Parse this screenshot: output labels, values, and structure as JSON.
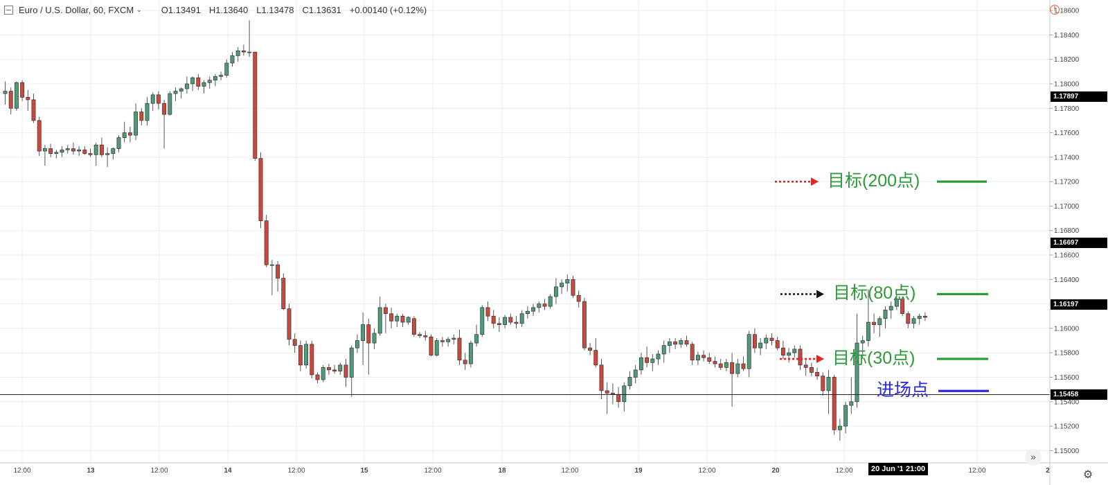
{
  "header": {
    "symbol": "Euro / U.S. Dollar, 60, FXCM",
    "caret": "⌄",
    "open": "O1.13491",
    "high": "H1.13640",
    "low": "L1.13478",
    "close": "C1.13631",
    "change": "+0.00140 (+0.12%)"
  },
  "icons": {
    "warning": "!",
    "scroll_right": "»",
    "settings": "⚙"
  },
  "colors": {
    "up": "#4f9a77",
    "down": "#c94a3c",
    "grid": "#ececec",
    "target_line": "#2e9a3a",
    "target_text": "#2e9a3a",
    "entry_line": "#2a2ae0",
    "entry_text": "#2a2ae0",
    "arrow_red": "#e8231f",
    "arrow_black": "#111111"
  },
  "price_axis": {
    "labels": [
      "1.18600",
      "1.18400",
      "1.18200",
      "1.18000",
      "1.17800",
      "1.17600",
      "1.17400",
      "1.17200",
      "1.17000",
      "1.16800",
      "1.16600",
      "1.16400",
      "1.16200",
      "1.16000",
      "1.15800",
      "1.15600",
      "1.15400",
      "1.15200",
      "1.15000"
    ],
    "tags": [
      "1.17897",
      "1.16697",
      "1.16197",
      "1.15458"
    ]
  },
  "time_axis": {
    "labels": [
      "12:00",
      "13",
      "12:00",
      "14",
      "12:00",
      "15",
      "12:00",
      "18",
      "12:00",
      "19",
      "12:00",
      "20",
      "12:00",
      "12:00",
      "2"
    ],
    "highlight_date": "20 Jun '18",
    "highlight_time": "21:00"
  },
  "annotations": {
    "target_200": "目标(200点)",
    "target_80": "目标(80点)",
    "target_30": "目标(30点)",
    "entry": "进场点"
  },
  "chart_data": {
    "type": "candlestick",
    "title": "Euro / U.S. Dollar, 60, FXCM",
    "timeframe": "60",
    "ylim": [
      1.149,
      1.1868
    ],
    "grid": true,
    "entry_price": 1.15458,
    "target_prices": {
      "target_200": 1.172,
      "target_80": 1.1628,
      "target_30": 1.1575
    },
    "candles": [
      [
        1.1792,
        1.1802,
        1.1783,
        1.1794
      ],
      [
        1.1794,
        1.1797,
        1.1775,
        1.178
      ],
      [
        1.178,
        1.1802,
        1.1778,
        1.1801
      ],
      [
        1.1801,
        1.1803,
        1.1786,
        1.1789
      ],
      [
        1.1789,
        1.1795,
        1.1778,
        1.1787
      ],
      [
        1.1787,
        1.1792,
        1.1768,
        1.177
      ],
      [
        1.177,
        1.1773,
        1.1741,
        1.1745
      ],
      [
        1.1745,
        1.175,
        1.1733,
        1.1747
      ],
      [
        1.1747,
        1.1751,
        1.174,
        1.1743
      ],
      [
        1.1743,
        1.1746,
        1.1739,
        1.1744
      ],
      [
        1.1744,
        1.1749,
        1.174,
        1.1746
      ],
      [
        1.1746,
        1.175,
        1.1743,
        1.1747
      ],
      [
        1.1747,
        1.1752,
        1.1742,
        1.1745
      ],
      [
        1.1745,
        1.1749,
        1.1741,
        1.1746
      ],
      [
        1.1746,
        1.1749,
        1.1742,
        1.1743
      ],
      [
        1.1743,
        1.1747,
        1.174,
        1.1742
      ],
      [
        1.1742,
        1.1752,
        1.1733,
        1.175
      ],
      [
        1.175,
        1.1756,
        1.174,
        1.1742
      ],
      [
        1.1742,
        1.1748,
        1.1732,
        1.1743
      ],
      [
        1.1743,
        1.1748,
        1.1738,
        1.1747
      ],
      [
        1.1747,
        1.1758,
        1.1744,
        1.1756
      ],
      [
        1.1756,
        1.1769,
        1.1752,
        1.176
      ],
      [
        1.176,
        1.1765,
        1.1752,
        1.1758
      ],
      [
        1.1758,
        1.1784,
        1.1754,
        1.1777
      ],
      [
        1.1777,
        1.178,
        1.1766,
        1.177
      ],
      [
        1.177,
        1.1789,
        1.1766,
        1.1784
      ],
      [
        1.1784,
        1.1793,
        1.1778,
        1.1791
      ],
      [
        1.1791,
        1.1794,
        1.1779,
        1.1784
      ],
      [
        1.1784,
        1.1787,
        1.1747,
        1.1775
      ],
      [
        1.1775,
        1.1794,
        1.1774,
        1.1792
      ],
      [
        1.1792,
        1.1797,
        1.1786,
        1.1794
      ],
      [
        1.1794,
        1.1797,
        1.1788,
        1.1796
      ],
      [
        1.1796,
        1.1806,
        1.1792,
        1.18
      ],
      [
        1.18,
        1.1806,
        1.1794,
        1.1805
      ],
      [
        1.1805,
        1.1808,
        1.1795,
        1.1798
      ],
      [
        1.1798,
        1.1803,
        1.1792,
        1.1801
      ],
      [
        1.1801,
        1.1806,
        1.1796,
        1.1803
      ],
      [
        1.1803,
        1.1808,
        1.1798,
        1.1806
      ],
      [
        1.1806,
        1.181,
        1.1803,
        1.1807
      ],
      [
        1.1807,
        1.182,
        1.1805,
        1.1817
      ],
      [
        1.1817,
        1.1826,
        1.1814,
        1.1823
      ],
      [
        1.1823,
        1.183,
        1.1818,
        1.1827
      ],
      [
        1.1827,
        1.1832,
        1.1823,
        1.1826
      ],
      [
        1.1826,
        1.1852,
        1.1822,
        1.1826
      ],
      [
        1.1826,
        1.1826,
        1.1737,
        1.1739
      ],
      [
        1.1739,
        1.1744,
        1.1682,
        1.1688
      ],
      [
        1.1688,
        1.1693,
        1.165,
        1.1652
      ],
      [
        1.1652,
        1.1656,
        1.1627,
        1.1652
      ],
      [
        1.1652,
        1.1655,
        1.163,
        1.1641
      ],
      [
        1.1641,
        1.1645,
        1.1615,
        1.1616
      ],
      [
        1.1616,
        1.162,
        1.1586,
        1.1591
      ],
      [
        1.1591,
        1.1596,
        1.158,
        1.1586
      ],
      [
        1.1586,
        1.159,
        1.1565,
        1.157
      ],
      [
        1.157,
        1.159,
        1.1567,
        1.1587
      ],
      [
        1.1587,
        1.159,
        1.1559,
        1.1562
      ],
      [
        1.1562,
        1.1564,
        1.1555,
        1.1558
      ],
      [
        1.1558,
        1.157,
        1.1556,
        1.1568
      ],
      [
        1.1568,
        1.1571,
        1.1562,
        1.1566
      ],
      [
        1.1566,
        1.157,
        1.1563,
        1.1565
      ],
      [
        1.1565,
        1.1572,
        1.1562,
        1.157
      ],
      [
        1.157,
        1.1575,
        1.1552,
        1.156
      ],
      [
        1.156,
        1.1586,
        1.1544,
        1.1584
      ],
      [
        1.1584,
        1.1595,
        1.158,
        1.159
      ],
      [
        1.159,
        1.1613,
        1.157,
        1.1603
      ],
      [
        1.1603,
        1.1608,
        1.1562,
        1.1588
      ],
      [
        1.1588,
        1.16,
        1.1583,
        1.1596
      ],
      [
        1.1596,
        1.1626,
        1.1594,
        1.1617
      ],
      [
        1.1617,
        1.162,
        1.1596,
        1.1612
      ],
      [
        1.1612,
        1.1617,
        1.16,
        1.1606
      ],
      [
        1.1606,
        1.1612,
        1.1601,
        1.161
      ],
      [
        1.161,
        1.1612,
        1.1601,
        1.1605
      ],
      [
        1.1605,
        1.161,
        1.1603,
        1.1609
      ],
      [
        1.1608,
        1.161,
        1.1593,
        1.1595
      ],
      [
        1.1595,
        1.1597,
        1.1592,
        1.1594
      ],
      [
        1.1594,
        1.1598,
        1.159,
        1.1593
      ],
      [
        1.1593,
        1.1595,
        1.1577,
        1.1578
      ],
      [
        1.1578,
        1.1592,
        1.1577,
        1.159
      ],
      [
        1.159,
        1.1593,
        1.1585,
        1.1589
      ],
      [
        1.1589,
        1.1593,
        1.1585,
        1.1591
      ],
      [
        1.1591,
        1.1595,
        1.1587,
        1.1592
      ],
      [
        1.1592,
        1.1599,
        1.157,
        1.1574
      ],
      [
        1.1574,
        1.158,
        1.1566,
        1.1571
      ],
      [
        1.1571,
        1.159,
        1.1568,
        1.1588
      ],
      [
        1.1588,
        1.1603,
        1.1585,
        1.1595
      ],
      [
        1.1595,
        1.1619,
        1.1593,
        1.1617
      ],
      [
        1.1617,
        1.1622,
        1.1606,
        1.161
      ],
      [
        1.161,
        1.1615,
        1.16,
        1.1604
      ],
      [
        1.1604,
        1.1609,
        1.1597,
        1.1603
      ],
      [
        1.1603,
        1.1611,
        1.16,
        1.1609
      ],
      [
        1.1609,
        1.1612,
        1.1603,
        1.1605
      ],
      [
        1.1605,
        1.161,
        1.16,
        1.1604
      ],
      [
        1.1604,
        1.1615,
        1.1601,
        1.1612
      ],
      [
        1.1612,
        1.1618,
        1.1608,
        1.1614
      ],
      [
        1.1614,
        1.162,
        1.161,
        1.1617
      ],
      [
        1.1617,
        1.1622,
        1.1613,
        1.162
      ],
      [
        1.162,
        1.1624,
        1.1615,
        1.1618
      ],
      [
        1.1618,
        1.1628,
        1.1616,
        1.1626
      ],
      [
        1.1626,
        1.1641,
        1.162,
        1.1634
      ],
      [
        1.1634,
        1.164,
        1.1628,
        1.1637
      ],
      [
        1.1637,
        1.1644,
        1.163,
        1.164
      ],
      [
        1.164,
        1.1643,
        1.1625,
        1.1627
      ],
      [
        1.1627,
        1.1631,
        1.1617,
        1.1622
      ],
      [
        1.1622,
        1.1625,
        1.1582,
        1.1584
      ],
      [
        1.1584,
        1.1588,
        1.1578,
        1.1582
      ],
      [
        1.1582,
        1.1592,
        1.1568,
        1.157
      ],
      [
        1.157,
        1.1575,
        1.1542,
        1.1549
      ],
      [
        1.1549,
        1.1556,
        1.153,
        1.1547
      ],
      [
        1.1547,
        1.1555,
        1.1538,
        1.1546
      ],
      [
        1.1546,
        1.1552,
        1.1535,
        1.154
      ],
      [
        1.154,
        1.1556,
        1.1532,
        1.1553
      ],
      [
        1.1553,
        1.1565,
        1.155,
        1.156
      ],
      [
        1.156,
        1.157,
        1.1555,
        1.1566
      ],
      [
        1.1566,
        1.158,
        1.1562,
        1.1576
      ],
      [
        1.1576,
        1.1585,
        1.1568,
        1.1572
      ],
      [
        1.1572,
        1.1579,
        1.1565,
        1.1575
      ],
      [
        1.1575,
        1.1582,
        1.157,
        1.1579
      ],
      [
        1.1579,
        1.159,
        1.1572,
        1.1586
      ],
      [
        1.1586,
        1.1592,
        1.158,
        1.1589
      ],
      [
        1.1589,
        1.1592,
        1.1583,
        1.1587
      ],
      [
        1.1587,
        1.1592,
        1.1584,
        1.159
      ],
      [
        1.159,
        1.1594,
        1.1585,
        1.1587
      ],
      [
        1.1587,
        1.1589,
        1.157,
        1.1574
      ],
      [
        1.1574,
        1.1581,
        1.157,
        1.1578
      ],
      [
        1.1578,
        1.1582,
        1.1573,
        1.1576
      ],
      [
        1.1576,
        1.158,
        1.1571,
        1.1573
      ],
      [
        1.1573,
        1.1577,
        1.1568,
        1.1571
      ],
      [
        1.1571,
        1.1575,
        1.1566,
        1.1568
      ],
      [
        1.1568,
        1.1575,
        1.1565,
        1.1572
      ],
      [
        1.1572,
        1.158,
        1.1536,
        1.1563
      ],
      [
        1.1563,
        1.1575,
        1.156,
        1.1571
      ],
      [
        1.1571,
        1.1577,
        1.1565,
        1.1567
      ],
      [
        1.1567,
        1.1598,
        1.156,
        1.1595
      ],
      [
        1.1595,
        1.16,
        1.158,
        1.1584
      ],
      [
        1.1584,
        1.1592,
        1.1578,
        1.1588
      ],
      [
        1.1588,
        1.1595,
        1.1583,
        1.1592
      ],
      [
        1.1592,
        1.1596,
        1.1586,
        1.159
      ],
      [
        1.159,
        1.1593,
        1.1582,
        1.1584
      ],
      [
        1.1584,
        1.159,
        1.1575,
        1.1578
      ],
      [
        1.1578,
        1.1584,
        1.1572,
        1.158
      ],
      [
        1.158,
        1.1586,
        1.1576,
        1.1583
      ],
      [
        1.1583,
        1.1586,
        1.1566,
        1.157
      ],
      [
        1.157,
        1.1574,
        1.1561,
        1.1568
      ],
      [
        1.1568,
        1.1572,
        1.1561,
        1.1564
      ],
      [
        1.1564,
        1.1568,
        1.1558,
        1.1561
      ],
      [
        1.1561,
        1.1564,
        1.1545,
        1.1549
      ],
      [
        1.1549,
        1.1566,
        1.153,
        1.156
      ],
      [
        1.156,
        1.1562,
        1.1513,
        1.1517
      ],
      [
        1.1517,
        1.1526,
        1.1508,
        1.152
      ],
      [
        1.152,
        1.154,
        1.1514,
        1.1537
      ],
      [
        1.1537,
        1.156,
        1.153,
        1.154
      ],
      [
        1.154,
        1.1612,
        1.1535,
        1.1588
      ],
      [
        1.1588,
        1.1594,
        1.1575,
        1.159
      ],
      [
        1.159,
        1.1632,
        1.1585,
        1.1605
      ],
      [
        1.1605,
        1.1612,
        1.1596,
        1.1603
      ],
      [
        1.1603,
        1.161,
        1.1593,
        1.1608
      ],
      [
        1.1608,
        1.1618,
        1.16,
        1.1615
      ],
      [
        1.1615,
        1.1622,
        1.1608,
        1.1618
      ],
      [
        1.1618,
        1.1628,
        1.1615,
        1.1624
      ],
      [
        1.1624,
        1.1626,
        1.161,
        1.1612
      ],
      [
        1.1612,
        1.1614,
        1.16,
        1.1604
      ],
      [
        1.1604,
        1.161,
        1.16,
        1.1608
      ],
      [
        1.1608,
        1.1612,
        1.1603,
        1.161
      ],
      [
        1.161,
        1.1613,
        1.1606,
        1.1609
      ]
    ]
  }
}
